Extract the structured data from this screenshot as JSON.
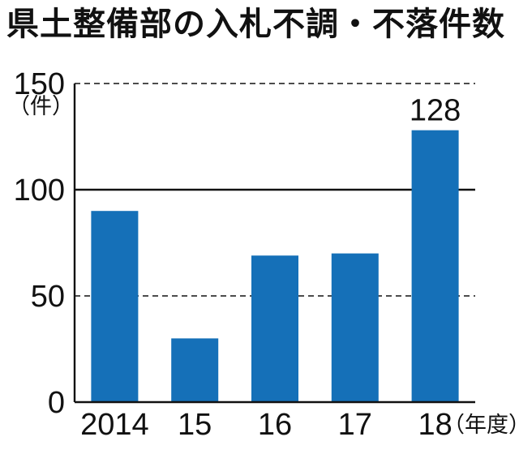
{
  "chart_data": {
    "type": "bar",
    "title": "県土整備部の入札不調・不落件数",
    "categories": [
      "2014",
      "15",
      "16",
      "17",
      "18"
    ],
    "values": [
      90,
      30,
      69,
      70,
      128
    ],
    "data_labels": [
      null,
      null,
      null,
      null,
      "128"
    ],
    "ylim": [
      0,
      150
    ],
    "yticks": [
      0,
      50,
      100,
      150
    ],
    "ylabel": "（件）",
    "xlabel": "（年度）",
    "grid": {
      "solid": [
        100
      ],
      "dashed": [
        50,
        150
      ]
    },
    "bar_color": "#1570b8",
    "axis_color": "#111111"
  }
}
